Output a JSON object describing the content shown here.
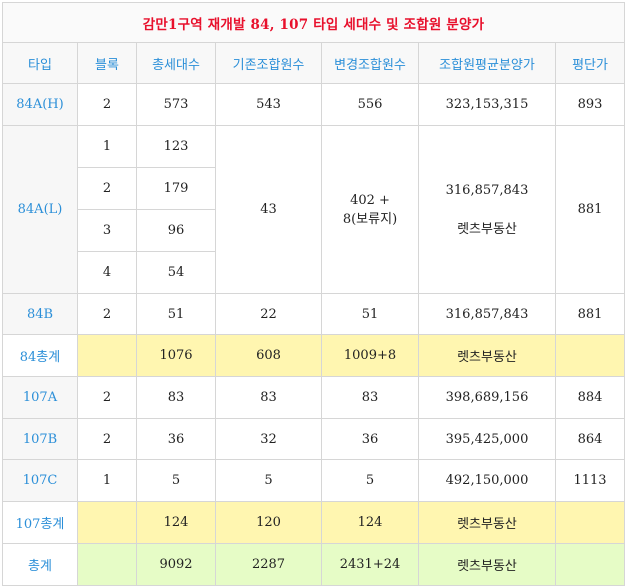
{
  "title": "감만1구역 재개발 84, 107 타입 세대수 및 조합원 분양가",
  "headers": [
    "타입",
    "블록",
    "총세대수",
    "기존조합원수",
    "변경조합원수",
    "조합원평균분양가",
    "평단가"
  ],
  "rows": {
    "r84AH": {
      "type": "84A(H)",
      "block": "2",
      "total": "573",
      "prev": "543",
      "changed": "556",
      "avg": "323,153,315",
      "unit": "893"
    },
    "r84AL": {
      "type": "84A(L)",
      "blocks": [
        {
          "block": "1",
          "total": "123"
        },
        {
          "block": "2",
          "total": "179"
        },
        {
          "block": "3",
          "total": "96"
        },
        {
          "block": "4",
          "total": "54"
        }
      ],
      "prev": "43",
      "changed_line1": "402 +",
      "changed_line2": "8(보류지)",
      "avg": "316,857,843",
      "avg_note": "렛츠부동산",
      "unit": "881"
    },
    "r84B": {
      "type": "84B",
      "block": "2",
      "total": "51",
      "prev": "22",
      "changed": "51",
      "avg": "316,857,843",
      "unit": "881"
    },
    "sum84": {
      "type": "84총계",
      "block": "",
      "total": "1076",
      "prev": "608",
      "changed": "1009+8",
      "avg": "렛츠부동산",
      "unit": ""
    },
    "r107A": {
      "type": "107A",
      "block": "2",
      "total": "83",
      "prev": "83",
      "changed": "83",
      "avg": "398,689,156",
      "unit": "884"
    },
    "r107B": {
      "type": "107B",
      "block": "2",
      "total": "36",
      "prev": "32",
      "changed": "36",
      "avg": "395,425,000",
      "unit": "864"
    },
    "r107C": {
      "type": "107C",
      "block": "1",
      "total": "5",
      "prev": "5",
      "changed": "5",
      "avg": "492,150,000",
      "unit": "1113"
    },
    "sum107": {
      "type": "107총계",
      "block": "",
      "total": "124",
      "prev": "120",
      "changed": "124",
      "avg": "렛츠부동산",
      "unit": ""
    },
    "total": {
      "type": "총계",
      "block": "",
      "total": "9092",
      "prev": "2287",
      "changed": "2431+24",
      "avg": "렛츠부동산",
      "unit": ""
    }
  },
  "colors": {
    "title": "#e8102c",
    "header": "#2b8fd8",
    "subtotal_bg": "#fff6b0",
    "total_bg": "#e6fcc6"
  }
}
